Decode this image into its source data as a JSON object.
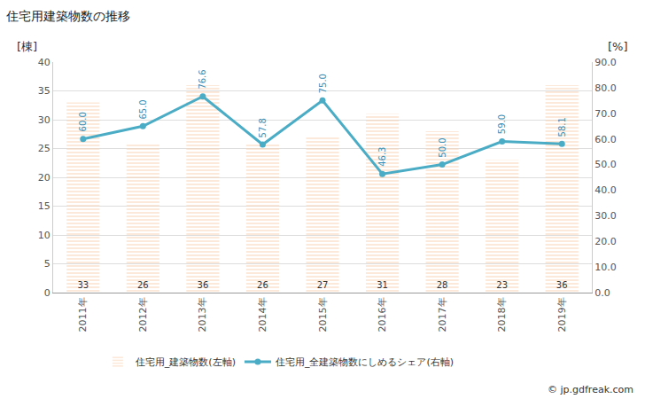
{
  "chart_data": {
    "type": "bar",
    "title": "住宅用建築物数の推移",
    "ylabel": "[棟]",
    "y2label": "[%]",
    "categories": [
      "2011年",
      "2012年",
      "2013年",
      "2014年",
      "2015年",
      "2016年",
      "2017年",
      "2018年",
      "2019年"
    ],
    "series": [
      {
        "name": "住宅用_建築物数(左軸)",
        "type": "bar",
        "color": "#f5a66a",
        "data_labels": true,
        "values": [
          33,
          26,
          36,
          26,
          27,
          31,
          28,
          23,
          36
        ]
      },
      {
        "name": "住宅用_全建築物数にしめるシェア(右軸)",
        "type": "line",
        "axis": "y2",
        "color": "#4bacc6",
        "marker": "circle",
        "data_labels": true,
        "values": [
          60.0,
          65.0,
          76.6,
          57.8,
          75.0,
          46.3,
          50.0,
          59.0,
          58.1
        ],
        "value_labels": [
          "60.0",
          "65.0",
          "76.6",
          "57.8",
          "75.0",
          "46.3",
          "50.0",
          "59.0",
          "58.1"
        ]
      }
    ],
    "ylim": [
      0,
      40
    ],
    "yticks": [
      0,
      5,
      10,
      15,
      20,
      25,
      30,
      35,
      40
    ],
    "y2lim": [
      0,
      90
    ],
    "y2ticks": [
      {
        "value": 0,
        "label": "0.0"
      },
      {
        "value": 10,
        "label": "10.0"
      },
      {
        "value": 20,
        "label": "20.0"
      },
      {
        "value": 30,
        "label": "30.0"
      },
      {
        "value": 40,
        "label": "40.0"
      },
      {
        "value": 50,
        "label": "50.0"
      },
      {
        "value": 60,
        "label": "60.0"
      },
      {
        "value": 70,
        "label": "70.0"
      },
      {
        "value": 80,
        "label": "80.0"
      },
      {
        "value": 90,
        "label": "90.0"
      }
    ],
    "grid": true,
    "legend": "bottom",
    "annotations": [
      {
        "text": "© jp.gdfreak.com"
      }
    ]
  }
}
